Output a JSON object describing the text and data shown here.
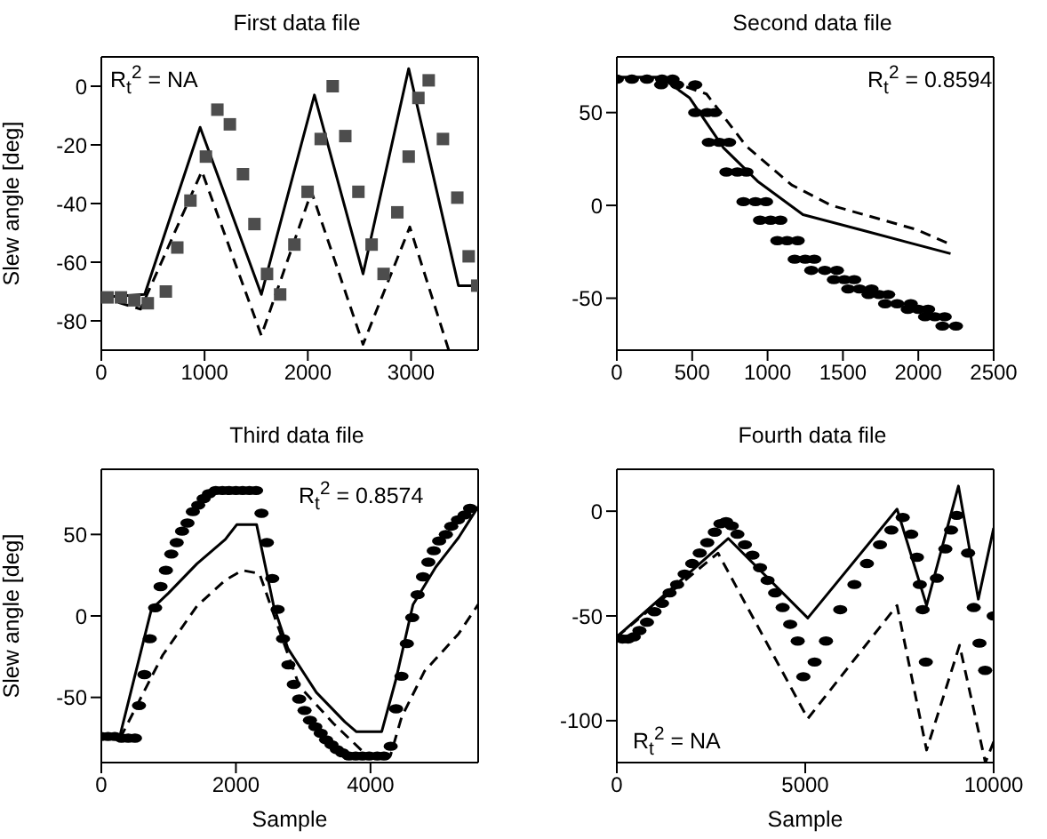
{
  "chart_data": [
    {
      "type": "line",
      "title": "First data file",
      "ylabel": "Slew angle [deg]",
      "annotations": [
        "R$_{t}$$^{2}$ = NA"
      ],
      "xlim": [
        0,
        3650
      ],
      "xticks": [
        0,
        1000,
        2000,
        3000
      ],
      "ylim": [
        -90,
        10
      ],
      "yticks": [
        -80,
        -60,
        -40,
        -20,
        0
      ],
      "series": [
        {
          "type": "scatter",
          "marker": "square",
          "color": "#4d4d4d",
          "x": [
            60,
            190,
            320,
            450,
            625,
            736,
            863,
            1013,
            1124,
            1245,
            1372,
            1483,
            1605,
            1732,
            1870,
            1998,
            2125,
            2241,
            2363,
            2490,
            2618,
            2734,
            2867,
            2977,
            3071,
            3171,
            3309,
            3448,
            3558,
            3641
          ],
          "values": [
            -72,
            -72,
            -73,
            -74,
            -70,
            -55,
            -39,
            -24,
            -8,
            -13,
            -30,
            -47,
            -64,
            -71,
            -54,
            -36,
            -18,
            0,
            -17,
            -36,
            -54,
            -64,
            -43,
            -24,
            -4,
            2,
            -18,
            -38,
            -58,
            -68
          ]
        },
        {
          "line_style": "solid",
          "color": "#000000",
          "x": [
            0,
            420,
            957,
            1550,
            2064,
            2535,
            2977,
            3459,
            3650
          ],
          "values": [
            -72,
            -71,
            -14,
            -71,
            -3,
            -64,
            6,
            -68,
            -68
          ]
        },
        {
          "line_style": "dashed",
          "color": "#000000",
          "x": [
            0,
            380,
            974,
            1550,
            2036,
            2535,
            2988,
            3365
          ],
          "values": [
            -72,
            -76,
            -29,
            -85,
            -36,
            -88,
            -48,
            -90
          ]
        }
      ]
    },
    {
      "type": "line",
      "title": "Second data file",
      "annotations": [
        "R$_{t}$$^{2}$ = 0.8594"
      ],
      "xlim": [
        0,
        2500
      ],
      "xticks": [
        0,
        500,
        1000,
        1500,
        2000,
        2500
      ],
      "ylim": [
        -78,
        80
      ],
      "yticks": [
        -50,
        0,
        50
      ],
      "series": [
        {
          "type": "scatter",
          "marker": "circle",
          "color": "#000000",
          "x": [
            0,
            100,
            200,
            300,
            370,
            294,
            400,
            520,
            520,
            600,
            650,
            610,
            680,
            745,
            727,
            800,
            860,
            840,
            920,
            990,
            950,
            1020,
            1085,
            1065,
            1130,
            1200,
            1180,
            1250,
            1310,
            1290,
            1380,
            1460,
            1440,
            1510,
            1575,
            1535,
            1610,
            1690,
            1670,
            1740,
            1800,
            1780,
            1860,
            1950,
            1930,
            2000,
            2065,
            2045,
            2110,
            2175,
            2160,
            2250
          ],
          "values": [
            68,
            68,
            68,
            68,
            68,
            65,
            65,
            65,
            50,
            50,
            50,
            34,
            34,
            34,
            18,
            18,
            18,
            2,
            2,
            2,
            -8,
            -8,
            -8,
            -19,
            -19,
            -19,
            -29,
            -29,
            -29,
            -35,
            -35,
            -35,
            -40,
            -40,
            -40,
            -45,
            -45,
            -45,
            -48,
            -48,
            -48,
            -53,
            -53,
            -53,
            -56,
            -56,
            -56,
            -60,
            -60,
            -60,
            -65,
            -65
          ]
        },
        {
          "line_style": "solid",
          "color": "#000000",
          "x": [
            0,
            294,
            482,
            708,
            934,
            1235,
            1611,
            2214
          ],
          "values": [
            69,
            69,
            58,
            31,
            13,
            -5,
            -13,
            -26
          ]
        },
        {
          "line_style": "dashed",
          "color": "#000000",
          "x": [
            0,
            280,
            595,
            858,
            1160,
            1423,
            1988,
            2214
          ],
          "values": [
            69,
            69,
            60,
            32,
            11,
            0,
            -13,
            -21
          ]
        }
      ]
    },
    {
      "type": "line",
      "title": "Third data file",
      "xlabel": "Sample",
      "ylabel": "Slew angle [deg]",
      "annotations": [
        "R$_{t}$$^{2}$ = 0.8574"
      ],
      "xlim": [
        0,
        5600
      ],
      "xticks": [
        0,
        2000,
        4000
      ],
      "ylim": [
        -90,
        90
      ],
      "yticks": [
        -50,
        0,
        50
      ],
      "series": [
        {
          "type": "scatter",
          "marker": "circle",
          "color": "#000000",
          "x": [
            0,
            100,
            200,
            300,
            400,
            500,
            560,
            640,
            720,
            800,
            880,
            960,
            1040,
            1120,
            1200,
            1280,
            1360,
            1440,
            1520,
            1600,
            1700,
            1800,
            1900,
            2000,
            2100,
            2200,
            2300,
            2380,
            2460,
            2540,
            2620,
            2700,
            2780,
            2860,
            2940,
            3020,
            3100,
            3180,
            3260,
            3340,
            3420,
            3500,
            3580,
            3680,
            3780,
            3880,
            3980,
            4100,
            4200,
            4300,
            4380,
            4460,
            4540,
            4620,
            4700,
            4780,
            4860,
            4940,
            5020,
            5120,
            5200,
            5300,
            5400,
            5480
          ],
          "values": [
            -74,
            -74,
            -74,
            -75,
            -75,
            -75,
            -55,
            -36,
            -14,
            5,
            18,
            28,
            38,
            45,
            52,
            57,
            64,
            68,
            72,
            75,
            77,
            77,
            77,
            77,
            77,
            77,
            77,
            63,
            45,
            23,
            4,
            -14,
            -30,
            -42,
            -51,
            -58,
            -64,
            -68,
            -72,
            -76,
            -79,
            -82,
            -84,
            -86,
            -86,
            -86,
            -86,
            -86,
            -86,
            -80,
            -57,
            -37,
            -17,
            -1,
            13,
            24,
            33,
            40,
            46,
            50,
            55,
            59,
            62,
            66
          ]
        },
        {
          "line_style": "solid",
          "color": "#000000",
          "x": [
            280,
            744,
            998,
            1420,
            1843,
            2012,
            2308,
            2562,
            2773,
            3196,
            3618,
            3787,
            4167,
            4378,
            4632,
            4970,
            5308,
            5600
          ],
          "values": [
            -73,
            4,
            14,
            32,
            47,
            56,
            56,
            6,
            -20,
            -47,
            -65,
            -71,
            -71,
            -39,
            7,
            30,
            48,
            67
          ]
        },
        {
          "line_style": "dashed",
          "color": "#000000",
          "x": [
            280,
            913,
            1420,
            1843,
            2096,
            2350,
            2604,
            2942,
            3449,
            3956,
            4294,
            4463,
            4801,
            5308,
            5600
          ],
          "values": [
            -75,
            -24,
            6,
            22,
            28,
            26,
            -4,
            -43,
            -66,
            -86,
            -86,
            -62,
            -34,
            -11,
            7
          ]
        }
      ]
    },
    {
      "type": "line",
      "title": "Fourth data file",
      "xlabel": "Sample",
      "annotations": [
        "R$_{t}$$^{2}$ = NA"
      ],
      "xlim": [
        0,
        10000
      ],
      "xticks": [
        0,
        5000,
        10000
      ],
      "ylim": [
        -120,
        20
      ],
      "yticks": [
        -100,
        -50,
        0
      ],
      "series": [
        {
          "type": "scatter",
          "marker": "circle",
          "color": "#000000",
          "x": [
            150,
            300,
            450,
            600,
            800,
            1000,
            1200,
            1400,
            1600,
            1800,
            2000,
            2200,
            2400,
            2600,
            2750,
            2900,
            3050,
            3200,
            3400,
            3600,
            3800,
            4000,
            4200,
            4400,
            4600,
            4800,
            4950,
            5249,
            5550,
            5928,
            6305,
            6637,
            6983,
            7285,
            7587,
            7813,
            7964,
            8040,
            8115,
            8200,
            8492,
            8718,
            8869,
            9020,
            9321,
            9472,
            9623,
            9774,
            10000
          ],
          "values": [
            -61,
            -61,
            -60,
            -57,
            -53,
            -48,
            -44,
            -39,
            -35,
            -30,
            -25,
            -20,
            -15,
            -10,
            -6,
            -5,
            -7,
            -11,
            -16,
            -21,
            -27,
            -33,
            -39,
            -46,
            -54,
            -62,
            -79,
            -72,
            -62,
            -47,
            -35,
            -25,
            -16,
            -9,
            -3,
            -11,
            -22,
            -35,
            -47,
            -72,
            -32,
            -18,
            -9,
            -2,
            -20,
            -46,
            -63,
            -76,
            -50
          ]
        },
        {
          "line_style": "solid",
          "color": "#000000",
          "x": [
            0,
            2956,
            5068,
            7436,
            8220,
            9065,
            9593,
            10000
          ],
          "values": [
            -60,
            -13,
            -51,
            1,
            -45,
            12,
            -42,
            -8
          ]
        },
        {
          "line_style": "dashed",
          "color": "#000000",
          "x": [
            0,
            2685,
            5068,
            7436,
            8220,
            9095,
            9780,
            10000
          ],
          "values": [
            -60,
            -20,
            -99,
            -45,
            -114,
            -64,
            -120,
            -110
          ]
        }
      ]
    }
  ]
}
